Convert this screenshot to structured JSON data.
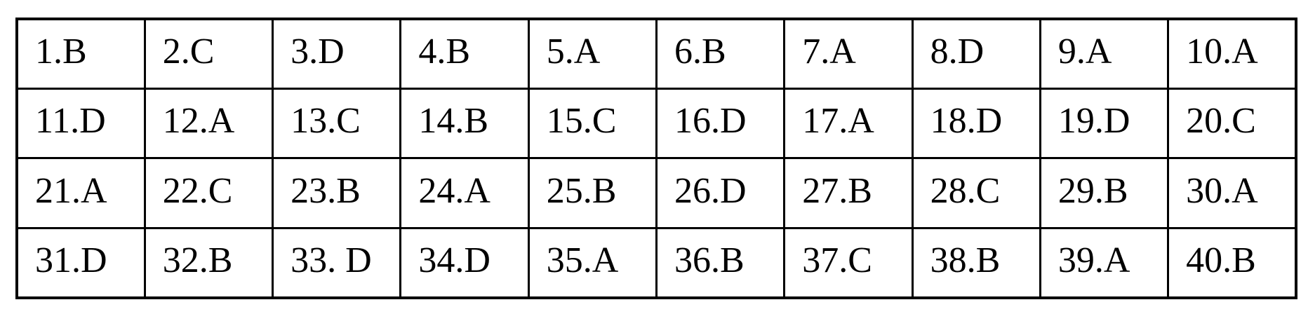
{
  "table": {
    "name": "answer-key",
    "columns": 10,
    "rows": [
      [
        "1.B",
        "2.C",
        "3.D",
        "4.B",
        "5.A",
        "6.B",
        "7.A",
        "8.D",
        "9.A",
        "10.A"
      ],
      [
        "11.D",
        "12.A",
        "13.C",
        "14.B",
        "15.C",
        "16.D",
        "17.A",
        "18.D",
        "19.D",
        "20.C"
      ],
      [
        "21.A",
        "22.C",
        "23.B",
        "24.A",
        "25.B",
        "26.D",
        "27.B",
        "28.C",
        "29.B",
        "30.A"
      ],
      [
        "31.D",
        "32.B",
        "33. D",
        "34.D",
        "35.A",
        "36.B",
        "37.C",
        "38.B",
        "39.A",
        "40.B"
      ]
    ]
  },
  "colors": {
    "border": "#000000",
    "text": "#000000",
    "background": "#ffffff"
  }
}
